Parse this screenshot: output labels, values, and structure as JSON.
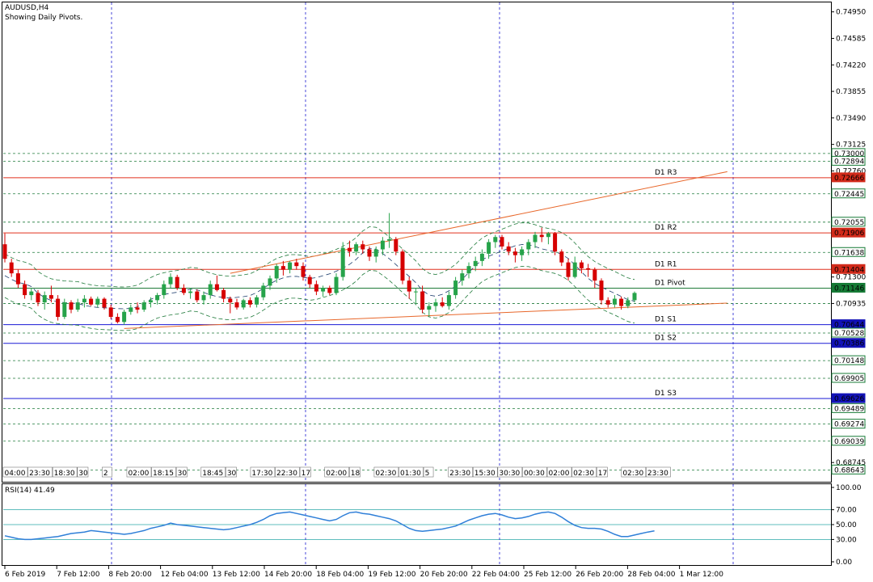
{
  "header": {
    "symbol": "AUDUSD,H4",
    "subtitle": "Showing Daily Pivots."
  },
  "rsi_label": "RSI(14) 41.49",
  "colors": {
    "bull": "#26a34a",
    "bear": "#d60000",
    "pivot_red": "#e0301e",
    "pivot_green": "#1f7a3a",
    "pivot_blue": "#1a1ad6",
    "trend": "#e8672a",
    "rsi": "#2f7fd8",
    "grid_blue": "#1b1bd0",
    "badge_blue": "#1212b8",
    "badge_red": "#d22a1a",
    "badge_green": "#157a35"
  },
  "chart_data": [
    {
      "type": "candlestick",
      "title": "AUDUSD,H4",
      "ylim": [
        0.6848,
        0.7508
      ],
      "price_axis_ticks": [
        "0.74950",
        "0.74585",
        "0.74220",
        "0.73855",
        "0.73490",
        "0.73125",
        "0.72760",
        "0.72445",
        "0.72055",
        "0.71638",
        "0.71300",
        "0.70935",
        "0.70528",
        "0.70148",
        "0.69905",
        "0.69489",
        "0.69274",
        "0.69039",
        "0.68745",
        "0.68643"
      ],
      "pivot_levels": [
        {
          "label": "D1 R3",
          "value": 0.72666,
          "color": "red"
        },
        {
          "label": "D1 R2",
          "value": 0.71906,
          "color": "red"
        },
        {
          "label": "D1 R1",
          "value": 0.71404,
          "color": "red"
        },
        {
          "label": "D1 Pivot",
          "value": 0.71146,
          "color": "green"
        },
        {
          "label": "D1 S1",
          "value": 0.70644,
          "color": "blue"
        },
        {
          "label": "D1 S2",
          "value": 0.70386,
          "color": "blue"
        },
        {
          "label": "D1 S3",
          "value": 0.69626,
          "color": "blue"
        }
      ],
      "price_badges": [
        {
          "text": "0.73000",
          "value": 0.73,
          "style": "green"
        },
        {
          "text": "0.72894",
          "value": 0.72894,
          "style": "green"
        },
        {
          "text": "0.72666",
          "value": 0.72666,
          "style": "red"
        },
        {
          "text": "0.72445",
          "value": 0.72445,
          "style": "green"
        },
        {
          "text": "0.72055",
          "value": 0.72055,
          "style": "green"
        },
        {
          "text": "0.71906",
          "value": 0.71906,
          "style": "red"
        },
        {
          "text": "0.71638",
          "value": 0.71638,
          "style": "green"
        },
        {
          "text": "0.71404",
          "value": 0.71404,
          "style": "red"
        },
        {
          "text": "0.71146",
          "value": 0.71146,
          "style": "green"
        },
        {
          "text": "0.70644",
          "value": 0.70644,
          "style": "blue"
        },
        {
          "text": "0.70528",
          "value": 0.70528,
          "style": "green"
        },
        {
          "text": "0.70386",
          "value": 0.70386,
          "style": "blue"
        },
        {
          "text": "0.70148",
          "value": 0.70148,
          "style": "green"
        },
        {
          "text": "0.69905",
          "value": 0.69905,
          "style": "green"
        },
        {
          "text": "0.69626",
          "value": 0.69626,
          "style": "blue"
        },
        {
          "text": "0.69489",
          "value": 0.69489,
          "style": "green"
        },
        {
          "text": "0.69274",
          "value": 0.69274,
          "style": "green"
        },
        {
          "text": "0.69039",
          "value": 0.69039,
          "style": "green"
        },
        {
          "text": "0.68643",
          "value": 0.68643,
          "style": "green"
        }
      ],
      "green_dashed_levels": [
        0.73,
        0.72894,
        0.72445,
        0.72055,
        0.71638,
        0.71146,
        0.70935,
        0.70528,
        0.70148,
        0.69905,
        0.69489,
        0.69274,
        0.69039,
        0.68643
      ],
      "x_date_labels": [
        "6 Feb 2019",
        "7 Feb 12:00",
        "8 Feb 20:00",
        "12 Feb 04:00",
        "13 Feb 12:00",
        "14 Feb 20:00",
        "18 Feb 04:00",
        "19 Feb 12:00",
        "20 Feb 20:00",
        "22 Feb 04:00",
        "25 Feb 12:00",
        "26 Feb 20:00",
        "28 Feb 04:00",
        "1 Mar 12:00"
      ],
      "pivot_time_labels": [
        "04:00",
        "23:30",
        "18:30",
        "30",
        "2",
        "02:00",
        "18:15",
        "30",
        "18:45",
        "30",
        "17:30",
        "22:30",
        "17",
        "02:00",
        "18",
        "02:30",
        "01:30",
        "5",
        "23:30",
        "15:30",
        "30:30",
        "00:30",
        "02:00",
        "02:30",
        "17",
        "02:30",
        "23:30"
      ],
      "candles": [
        {
          "o": 0.7175,
          "h": 0.719,
          "l": 0.715,
          "c": 0.7155
        },
        {
          "o": 0.715,
          "h": 0.7155,
          "l": 0.713,
          "c": 0.7135
        },
        {
          "o": 0.7135,
          "h": 0.714,
          "l": 0.7115,
          "c": 0.712
        },
        {
          "o": 0.712,
          "h": 0.7125,
          "l": 0.71,
          "c": 0.7105
        },
        {
          "o": 0.7105,
          "h": 0.7115,
          "l": 0.7098,
          "c": 0.711
        },
        {
          "o": 0.7108,
          "h": 0.7112,
          "l": 0.709,
          "c": 0.7095
        },
        {
          "o": 0.7095,
          "h": 0.711,
          "l": 0.7085,
          "c": 0.7105
        },
        {
          "o": 0.7105,
          "h": 0.7118,
          "l": 0.7095,
          "c": 0.71
        },
        {
          "o": 0.71,
          "h": 0.7105,
          "l": 0.707,
          "c": 0.7075
        },
        {
          "o": 0.7075,
          "h": 0.71,
          "l": 0.7072,
          "c": 0.7095
        },
        {
          "o": 0.7095,
          "h": 0.7098,
          "l": 0.708,
          "c": 0.7085
        },
        {
          "o": 0.7085,
          "h": 0.71,
          "l": 0.7082,
          "c": 0.7095
        },
        {
          "o": 0.7095,
          "h": 0.7105,
          "l": 0.7088,
          "c": 0.71
        },
        {
          "o": 0.71,
          "h": 0.7103,
          "l": 0.709,
          "c": 0.7092
        },
        {
          "o": 0.7092,
          "h": 0.7103,
          "l": 0.7088,
          "c": 0.71
        },
        {
          "o": 0.71,
          "h": 0.7102,
          "l": 0.7085,
          "c": 0.7088
        },
        {
          "o": 0.7088,
          "h": 0.7092,
          "l": 0.7072,
          "c": 0.7075
        },
        {
          "o": 0.7075,
          "h": 0.708,
          "l": 0.7066,
          "c": 0.7068
        },
        {
          "o": 0.7068,
          "h": 0.7085,
          "l": 0.7064,
          "c": 0.7082
        },
        {
          "o": 0.7082,
          "h": 0.7092,
          "l": 0.7078,
          "c": 0.7088
        },
        {
          "o": 0.7088,
          "h": 0.7095,
          "l": 0.708,
          "c": 0.7085
        },
        {
          "o": 0.7085,
          "h": 0.7098,
          "l": 0.7082,
          "c": 0.7095
        },
        {
          "o": 0.7095,
          "h": 0.7102,
          "l": 0.7088,
          "c": 0.7098
        },
        {
          "o": 0.7098,
          "h": 0.7108,
          "l": 0.7092,
          "c": 0.7105
        },
        {
          "o": 0.7105,
          "h": 0.7125,
          "l": 0.71,
          "c": 0.712
        },
        {
          "o": 0.712,
          "h": 0.7135,
          "l": 0.7115,
          "c": 0.713
        },
        {
          "o": 0.713,
          "h": 0.7133,
          "l": 0.7112,
          "c": 0.7115
        },
        {
          "o": 0.7115,
          "h": 0.712,
          "l": 0.7105,
          "c": 0.7108
        },
        {
          "o": 0.7108,
          "h": 0.7115,
          "l": 0.71,
          "c": 0.711
        },
        {
          "o": 0.711,
          "h": 0.7113,
          "l": 0.7095,
          "c": 0.7098
        },
        {
          "o": 0.7098,
          "h": 0.711,
          "l": 0.7092,
          "c": 0.7105
        },
        {
          "o": 0.7105,
          "h": 0.7125,
          "l": 0.71,
          "c": 0.712
        },
        {
          "o": 0.712,
          "h": 0.7132,
          "l": 0.711,
          "c": 0.7112
        },
        {
          "o": 0.7112,
          "h": 0.7115,
          "l": 0.7095,
          "c": 0.71
        },
        {
          "o": 0.71,
          "h": 0.7103,
          "l": 0.708,
          "c": 0.7095
        },
        {
          "o": 0.7095,
          "h": 0.71,
          "l": 0.7085,
          "c": 0.7088
        },
        {
          "o": 0.7088,
          "h": 0.71,
          "l": 0.7085,
          "c": 0.7098
        },
        {
          "o": 0.7098,
          "h": 0.7102,
          "l": 0.7088,
          "c": 0.7092
        },
        {
          "o": 0.7092,
          "h": 0.7105,
          "l": 0.7088,
          "c": 0.7102
        },
        {
          "o": 0.7102,
          "h": 0.7122,
          "l": 0.7098,
          "c": 0.7118
        },
        {
          "o": 0.7118,
          "h": 0.7132,
          "l": 0.7112,
          "c": 0.7128
        },
        {
          "o": 0.7128,
          "h": 0.7148,
          "l": 0.7122,
          "c": 0.7145
        },
        {
          "o": 0.7145,
          "h": 0.7152,
          "l": 0.7132,
          "c": 0.714
        },
        {
          "o": 0.714,
          "h": 0.7152,
          "l": 0.7135,
          "c": 0.715
        },
        {
          "o": 0.715,
          "h": 0.7155,
          "l": 0.714,
          "c": 0.7145
        },
        {
          "o": 0.7145,
          "h": 0.715,
          "l": 0.7125,
          "c": 0.713
        },
        {
          "o": 0.713,
          "h": 0.7133,
          "l": 0.7115,
          "c": 0.712
        },
        {
          "o": 0.712,
          "h": 0.7125,
          "l": 0.7105,
          "c": 0.711
        },
        {
          "o": 0.711,
          "h": 0.7118,
          "l": 0.7103,
          "c": 0.7115
        },
        {
          "o": 0.7115,
          "h": 0.7118,
          "l": 0.7105,
          "c": 0.7108
        },
        {
          "o": 0.7108,
          "h": 0.7135,
          "l": 0.7105,
          "c": 0.713
        },
        {
          "o": 0.713,
          "h": 0.7178,
          "l": 0.7125,
          "c": 0.717
        },
        {
          "o": 0.717,
          "h": 0.718,
          "l": 0.7158,
          "c": 0.7165
        },
        {
          "o": 0.7165,
          "h": 0.7178,
          "l": 0.716,
          "c": 0.7175
        },
        {
          "o": 0.7175,
          "h": 0.718,
          "l": 0.7162,
          "c": 0.7168
        },
        {
          "o": 0.7168,
          "h": 0.7172,
          "l": 0.7152,
          "c": 0.7158
        },
        {
          "o": 0.7158,
          "h": 0.7172,
          "l": 0.715,
          "c": 0.7168
        },
        {
          "o": 0.7168,
          "h": 0.7185,
          "l": 0.716,
          "c": 0.718
        },
        {
          "o": 0.718,
          "h": 0.7218,
          "l": 0.717,
          "c": 0.7182
        },
        {
          "o": 0.7182,
          "h": 0.7185,
          "l": 0.716,
          "c": 0.7165
        },
        {
          "o": 0.7165,
          "h": 0.7168,
          "l": 0.712,
          "c": 0.7125
        },
        {
          "o": 0.7125,
          "h": 0.713,
          "l": 0.71,
          "c": 0.711
        },
        {
          "o": 0.711,
          "h": 0.7115,
          "l": 0.7093,
          "c": 0.711
        },
        {
          "o": 0.711,
          "h": 0.7118,
          "l": 0.708,
          "c": 0.7085
        },
        {
          "o": 0.7085,
          "h": 0.7095,
          "l": 0.7075,
          "c": 0.709
        },
        {
          "o": 0.709,
          "h": 0.71,
          "l": 0.7082,
          "c": 0.7095
        },
        {
          "o": 0.7095,
          "h": 0.7102,
          "l": 0.7088,
          "c": 0.709
        },
        {
          "o": 0.709,
          "h": 0.711,
          "l": 0.7085,
          "c": 0.7105
        },
        {
          "o": 0.7105,
          "h": 0.713,
          "l": 0.71,
          "c": 0.7125
        },
        {
          "o": 0.7125,
          "h": 0.714,
          "l": 0.7118,
          "c": 0.7135
        },
        {
          "o": 0.7135,
          "h": 0.715,
          "l": 0.7128,
          "c": 0.7145
        },
        {
          "o": 0.7145,
          "h": 0.7158,
          "l": 0.7138,
          "c": 0.7152
        },
        {
          "o": 0.7152,
          "h": 0.7168,
          "l": 0.7145,
          "c": 0.7162
        },
        {
          "o": 0.7162,
          "h": 0.7182,
          "l": 0.7155,
          "c": 0.7178
        },
        {
          "o": 0.7178,
          "h": 0.7188,
          "l": 0.717,
          "c": 0.7185
        },
        {
          "o": 0.7185,
          "h": 0.7188,
          "l": 0.7168,
          "c": 0.7172
        },
        {
          "o": 0.7172,
          "h": 0.7178,
          "l": 0.716,
          "c": 0.7165
        },
        {
          "o": 0.7165,
          "h": 0.717,
          "l": 0.715,
          "c": 0.716
        },
        {
          "o": 0.716,
          "h": 0.7172,
          "l": 0.7152,
          "c": 0.7168
        },
        {
          "o": 0.7168,
          "h": 0.7182,
          "l": 0.716,
          "c": 0.7178
        },
        {
          "o": 0.7178,
          "h": 0.7192,
          "l": 0.717,
          "c": 0.7188
        },
        {
          "o": 0.7188,
          "h": 0.7198,
          "l": 0.7178,
          "c": 0.7185
        },
        {
          "o": 0.7185,
          "h": 0.7192,
          "l": 0.7175,
          "c": 0.719
        },
        {
          "o": 0.719,
          "h": 0.7192,
          "l": 0.716,
          "c": 0.7165
        },
        {
          "o": 0.7165,
          "h": 0.7168,
          "l": 0.7145,
          "c": 0.715
        },
        {
          "o": 0.715,
          "h": 0.7155,
          "l": 0.7125,
          "c": 0.713
        },
        {
          "o": 0.713,
          "h": 0.7158,
          "l": 0.7128,
          "c": 0.715
        },
        {
          "o": 0.715,
          "h": 0.7153,
          "l": 0.7135,
          "c": 0.7142
        },
        {
          "o": 0.7142,
          "h": 0.7148,
          "l": 0.713,
          "c": 0.714
        },
        {
          "o": 0.714,
          "h": 0.7143,
          "l": 0.7115,
          "c": 0.7125
        },
        {
          "o": 0.7125,
          "h": 0.7128,
          "l": 0.7092,
          "c": 0.7098
        },
        {
          "o": 0.7098,
          "h": 0.7102,
          "l": 0.7088,
          "c": 0.7092
        },
        {
          "o": 0.7092,
          "h": 0.7105,
          "l": 0.7088,
          "c": 0.71
        },
        {
          "o": 0.71,
          "h": 0.7103,
          "l": 0.7085,
          "c": 0.709
        },
        {
          "o": 0.709,
          "h": 0.7102,
          "l": 0.7087,
          "c": 0.7098
        },
        {
          "o": 0.7098,
          "h": 0.711,
          "l": 0.7095,
          "c": 0.7108
        }
      ],
      "trendlines": [
        {
          "name": "upper",
          "points": [
            [
              34,
              0.7135
            ],
            [
              109,
              0.7275
            ]
          ]
        },
        {
          "name": "lower",
          "points": [
            [
              18,
              0.7059
            ],
            [
              109,
              0.7094
            ]
          ]
        }
      ]
    },
    {
      "type": "line",
      "title": "RSI(14) 41.49",
      "ylim": [
        0,
        100
      ],
      "axis_ticks": [
        "100.00",
        "70.00",
        "50.00",
        "30.00",
        "0.00"
      ],
      "levels": [
        70,
        50,
        30
      ],
      "values": [
        35,
        33,
        31,
        30,
        30,
        31,
        32,
        33,
        34,
        36,
        38,
        39,
        40,
        42,
        41,
        40,
        39,
        38,
        37,
        38,
        40,
        42,
        45,
        47,
        49,
        52,
        50,
        49,
        48,
        47,
        46,
        45,
        44,
        43,
        44,
        46,
        48,
        50,
        53,
        57,
        62,
        65,
        66,
        67,
        65,
        63,
        61,
        59,
        57,
        55,
        57,
        62,
        66,
        67,
        65,
        64,
        62,
        60,
        58,
        55,
        50,
        45,
        42,
        41,
        42,
        43,
        44,
        46,
        48,
        52,
        56,
        59,
        62,
        64,
        65,
        63,
        60,
        58,
        59,
        61,
        64,
        66,
        67,
        65,
        60,
        54,
        49,
        46,
        45,
        45,
        44,
        41,
        37,
        34,
        34,
        36,
        38,
        40,
        41.49
      ]
    }
  ]
}
